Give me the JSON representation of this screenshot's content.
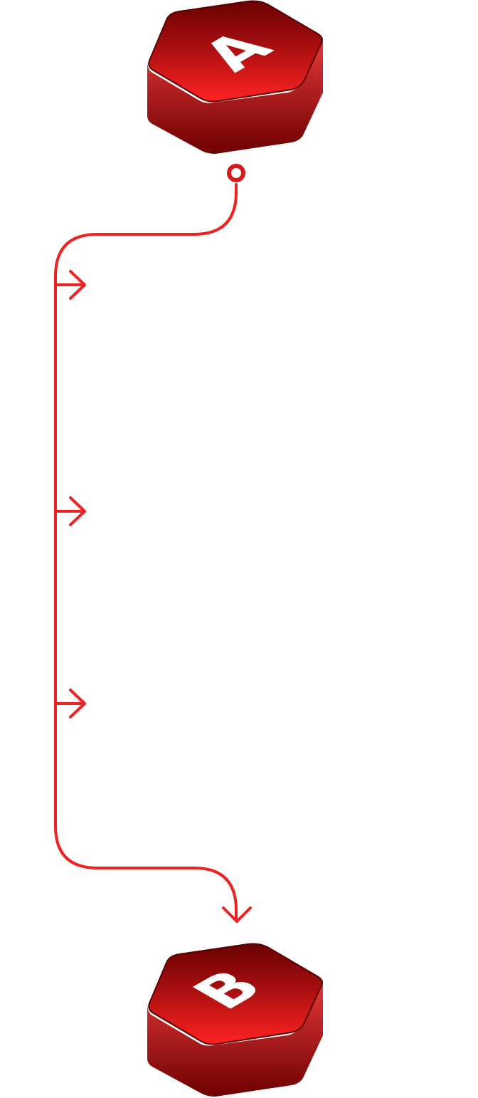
{
  "diagram": {
    "nodes": [
      {
        "id": "A",
        "label": "A"
      },
      {
        "id": "B",
        "label": "B"
      }
    ],
    "connector": {
      "from": "A",
      "to": "B",
      "start_marker": "circle",
      "end_marker": "open-arrow",
      "side_arrow_count": 3
    },
    "colors": {
      "line": "#ee2222",
      "hex_dark": "#6a0000",
      "hex_light": "#ff2222",
      "label": "#ffffff"
    }
  }
}
